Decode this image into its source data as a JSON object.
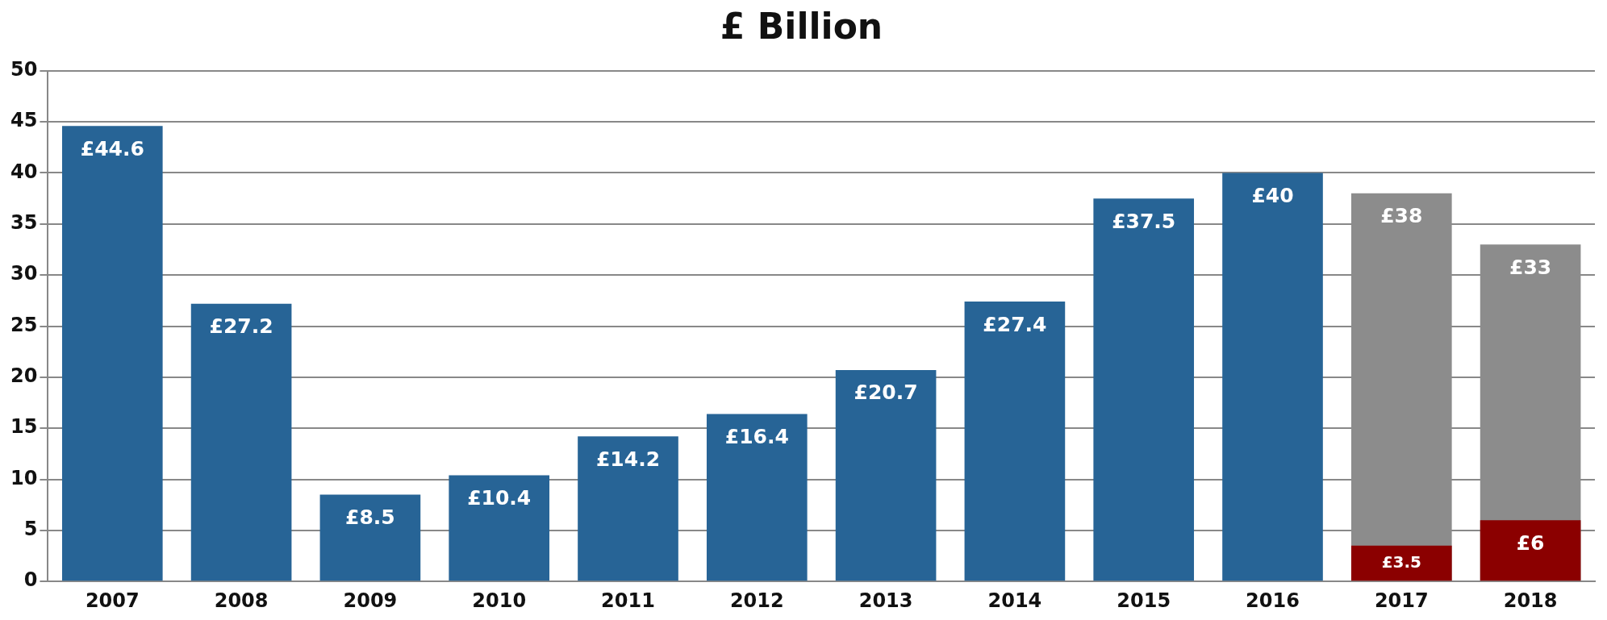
{
  "chart_data": {
    "type": "bar",
    "title": "£ Billion",
    "categories": [
      "2007",
      "2008",
      "2009",
      "2010",
      "2011",
      "2012",
      "2013",
      "2014",
      "2015",
      "2016",
      "2017",
      "2018"
    ],
    "series": [
      {
        "colors": [
          "#276496",
          "#276496",
          "#276496",
          "#276496",
          "#276496",
          "#276496",
          "#276496",
          "#276496",
          "#276496",
          "#276496",
          "#8c8c8c",
          "#8c8c8c"
        ],
        "values": [
          44.6,
          27.2,
          8.5,
          10.4,
          14.2,
          16.4,
          20.7,
          27.4,
          37.5,
          40,
          38,
          33
        ],
        "value_labels": [
          "£44.6",
          "£27.2",
          "£8.5",
          "£10.4",
          "£14.2",
          "£16.4",
          "£20.7",
          "£27.4",
          "£37.5",
          "£40",
          "£38",
          "£33"
        ]
      },
      {
        "color": "#8b0000",
        "values": [
          null,
          null,
          null,
          null,
          null,
          null,
          null,
          null,
          null,
          null,
          3.5,
          6
        ],
        "value_labels": [
          null,
          null,
          null,
          null,
          null,
          null,
          null,
          null,
          null,
          null,
          "£3.5",
          "£6"
        ]
      }
    ],
    "ylim": [
      0,
      50
    ],
    "yticks": [
      0,
      5,
      10,
      15,
      20,
      25,
      30,
      35,
      40,
      45,
      50
    ],
    "grid": "y",
    "legend": false
  }
}
